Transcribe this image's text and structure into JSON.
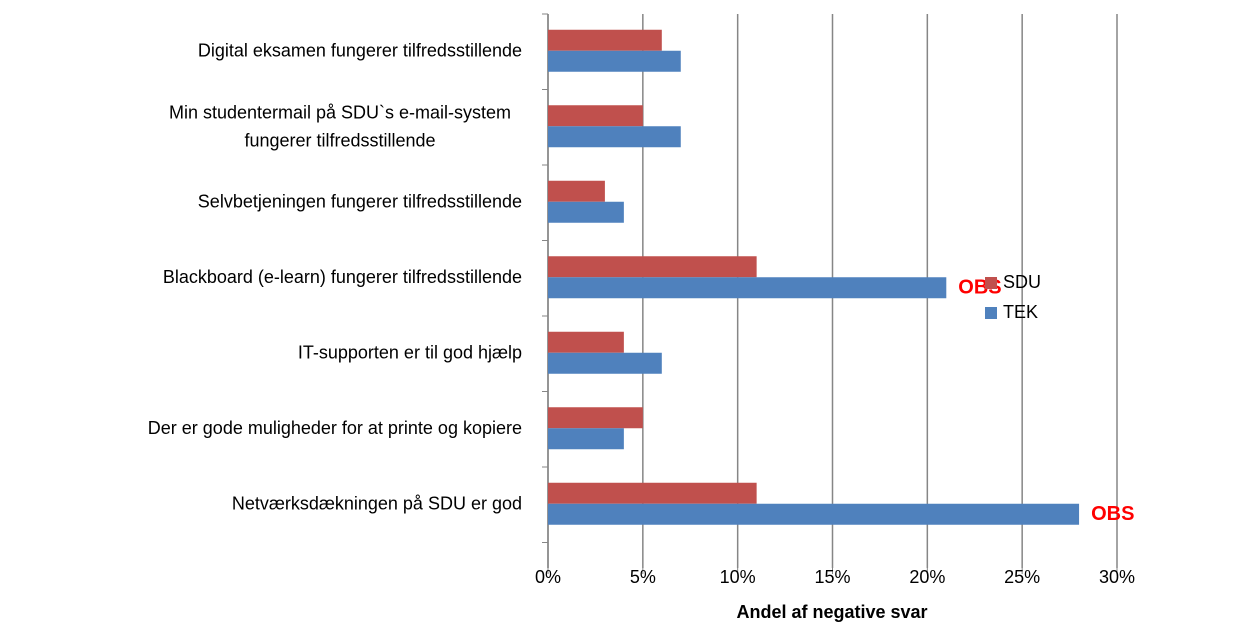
{
  "chart_data": {
    "type": "bar",
    "orientation": "horizontal",
    "categories": [
      "Digital eksamen fungerer tilfredsstillende",
      "Min studentermail på SDU`s e-mail-system\nfungerer tilfredsstillende",
      "Selvbetjeningen fungerer tilfredsstillende",
      "Blackboard (e-learn) fungerer tilfredsstillende",
      "IT-supporten er til god hjælp",
      "Der er gode muligheder for at printe og kopiere",
      "Netværksdækningen på SDU er god"
    ],
    "series": [
      {
        "name": "SDU",
        "color": "#c0504d",
        "values": [
          6,
          5,
          3,
          11,
          4,
          5,
          11
        ]
      },
      {
        "name": "TEK",
        "color": "#4f81bd",
        "values": [
          7,
          7,
          4,
          21,
          6,
          4,
          28
        ]
      }
    ],
    "xlabel": "Andel af negative svar",
    "xlim": [
      0,
      30
    ],
    "xticks": [
      {
        "value": 0,
        "label": "0%"
      },
      {
        "value": 5,
        "label": "5%"
      },
      {
        "value": 10,
        "label": "10%"
      },
      {
        "value": 15,
        "label": "15%"
      },
      {
        "value": 20,
        "label": "20%"
      },
      {
        "value": 25,
        "label": "25%"
      },
      {
        "value": 30,
        "label": "30%"
      }
    ],
    "grid": true,
    "legend": "right",
    "annotations": [
      {
        "text": "OBS",
        "category": "Blackboard (e-learn) fungerer tilfredsstillende",
        "series": "TEK"
      },
      {
        "text": "OBS",
        "category": "Netværksdækningen på SDU er god",
        "series": "TEK"
      }
    ]
  }
}
